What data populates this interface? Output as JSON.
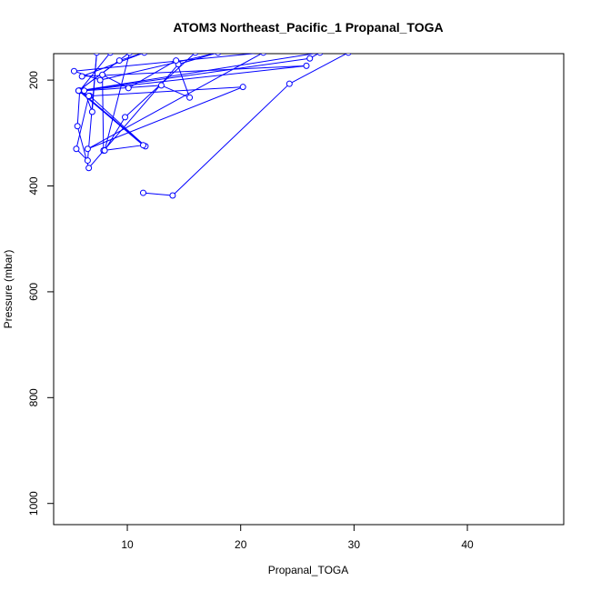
{
  "chart_data": {
    "type": "line",
    "title": "ATOM3 Northeast_Pacific_1 Propanal_TOGA",
    "xlabel": "Propanal_TOGA",
    "ylabel": "Pressure (mbar)",
    "xlim": [
      3.5,
      48.5
    ],
    "ylim": [
      1040,
      150
    ],
    "y_reversed": true,
    "xticks": [
      10,
      20,
      30,
      40
    ],
    "yticks": [
      200,
      400,
      600,
      800,
      1000
    ],
    "series_color": "#0000ff",
    "series": [
      {
        "points": [
          [
            11.4,
            413
          ],
          [
            14.0,
            418
          ],
          [
            24.3,
            207
          ],
          [
            29.5,
            148
          ],
          [
            8.5,
            148
          ],
          [
            5.8,
            220
          ],
          [
            5.6,
            287
          ],
          [
            6.6,
            366
          ],
          [
            14.5,
            170
          ],
          [
            18.0,
            148
          ],
          [
            7.6,
            200
          ],
          [
            5.3,
            183
          ],
          [
            22.0,
            148
          ],
          [
            6.5,
            330
          ],
          [
            20.2,
            213
          ],
          [
            6.7,
            230
          ],
          [
            11.6,
            325
          ],
          [
            5.8,
            220
          ],
          [
            27.0,
            148
          ],
          [
            26.1,
            159
          ],
          [
            5.8,
            220
          ],
          [
            25.8,
            173
          ],
          [
            6.0,
            193
          ],
          [
            11.5,
            148
          ],
          [
            9.3,
            163
          ],
          [
            5.7,
            220
          ],
          [
            6.6,
            230
          ],
          [
            5.5,
            330
          ],
          [
            6.5,
            352
          ],
          [
            7.3,
            148
          ],
          [
            6.9,
            260
          ],
          [
            6.2,
            220
          ],
          [
            13.0,
            210
          ],
          [
            15.5,
            233
          ],
          [
            14.3,
            163
          ],
          [
            10.1,
            215
          ],
          [
            7.8,
            190
          ],
          [
            7.9,
            333
          ],
          [
            11.4,
            323
          ],
          [
            5.7,
            220
          ],
          [
            10.2,
            148
          ],
          [
            8.0,
            333
          ],
          [
            9.8,
            270
          ],
          [
            16.0,
            148
          ]
        ]
      }
    ]
  }
}
